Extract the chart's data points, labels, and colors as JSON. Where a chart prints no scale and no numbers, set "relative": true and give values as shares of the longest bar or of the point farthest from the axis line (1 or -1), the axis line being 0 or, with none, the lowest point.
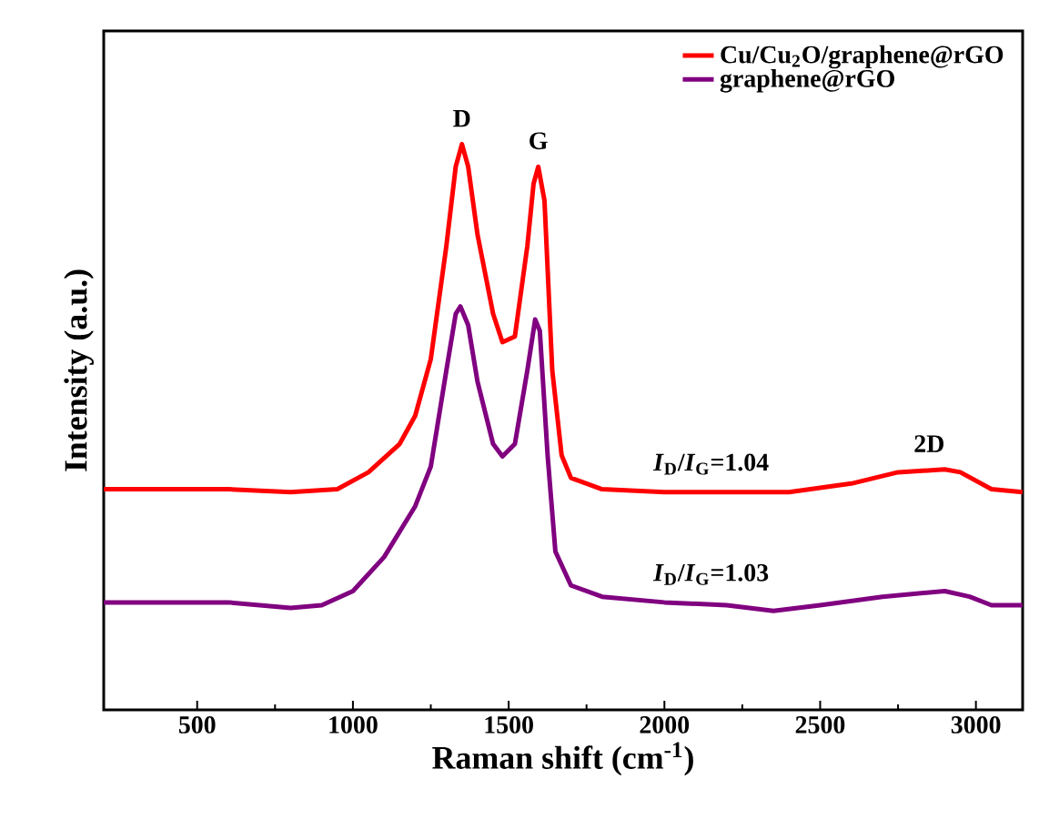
{
  "chart_data": {
    "type": "line",
    "relative": true,
    "xlabel": "Raman shift (cm$^{-1}$)",
    "ylabel": "Intensity (a.u.)",
    "xlim": [
      200,
      3150
    ],
    "xticks": [
      500,
      1000,
      1500,
      2000,
      2500,
      3000
    ],
    "legend": "top right",
    "marker": "none",
    "line_style": "solid",
    "grid": false,
    "series": [
      {
        "name": "Cu/Cu$_{2}$O/graphene@rGO",
        "color": "#ff0000",
        "x": [
          200,
          400,
          600,
          800,
          950,
          1050,
          1150,
          1200,
          1250,
          1300,
          1330,
          1350,
          1370,
          1400,
          1450,
          1480,
          1520,
          1560,
          1580,
          1595,
          1615,
          1640,
          1670,
          1700,
          1800,
          2000,
          2200,
          2400,
          2600,
          2750,
          2900,
          2950,
          3050,
          3150
        ],
        "values": [
          0.39,
          0.39,
          0.39,
          0.385,
          0.39,
          0.42,
          0.47,
          0.52,
          0.62,
          0.82,
          0.96,
          1.0,
          0.96,
          0.84,
          0.7,
          0.65,
          0.66,
          0.82,
          0.93,
          0.96,
          0.9,
          0.6,
          0.45,
          0.41,
          0.39,
          0.385,
          0.385,
          0.385,
          0.4,
          0.42,
          0.425,
          0.42,
          0.39,
          0.385
        ]
      },
      {
        "name": "graphene@rGO",
        "color": "#800080",
        "x": [
          200,
          400,
          600,
          800,
          900,
          1000,
          1100,
          1200,
          1250,
          1300,
          1330,
          1345,
          1370,
          1400,
          1450,
          1480,
          1520,
          1560,
          1585,
          1600,
          1625,
          1650,
          1700,
          1800,
          2000,
          2200,
          2350,
          2500,
          2700,
          2900,
          2980,
          3050,
          3150
        ],
        "values": [
          0.19,
          0.19,
          0.19,
          0.18,
          0.185,
          0.21,
          0.27,
          0.36,
          0.43,
          0.6,
          0.7,
          0.713,
          0.68,
          0.58,
          0.47,
          0.448,
          0.47,
          0.6,
          0.69,
          0.67,
          0.45,
          0.28,
          0.22,
          0.2,
          0.19,
          0.185,
          0.175,
          0.185,
          0.2,
          0.21,
          0.2,
          0.185,
          0.185
        ]
      }
    ],
    "annotations": [
      {
        "text": "D",
        "x": 1350,
        "y": 1.0
      },
      {
        "text": "G",
        "x": 1595,
        "y": 0.96
      },
      {
        "text": "2D",
        "x": 2850,
        "y": 0.425
      },
      {
        "text": "*I*$_{D}$/*I*$_{G}$=1.04",
        "x": 2150,
        "y": 0.385
      },
      {
        "text": "*I*$_{D}$/*I*$_{G}$=1.03",
        "x": 2150,
        "y": 0.19
      }
    ]
  }
}
